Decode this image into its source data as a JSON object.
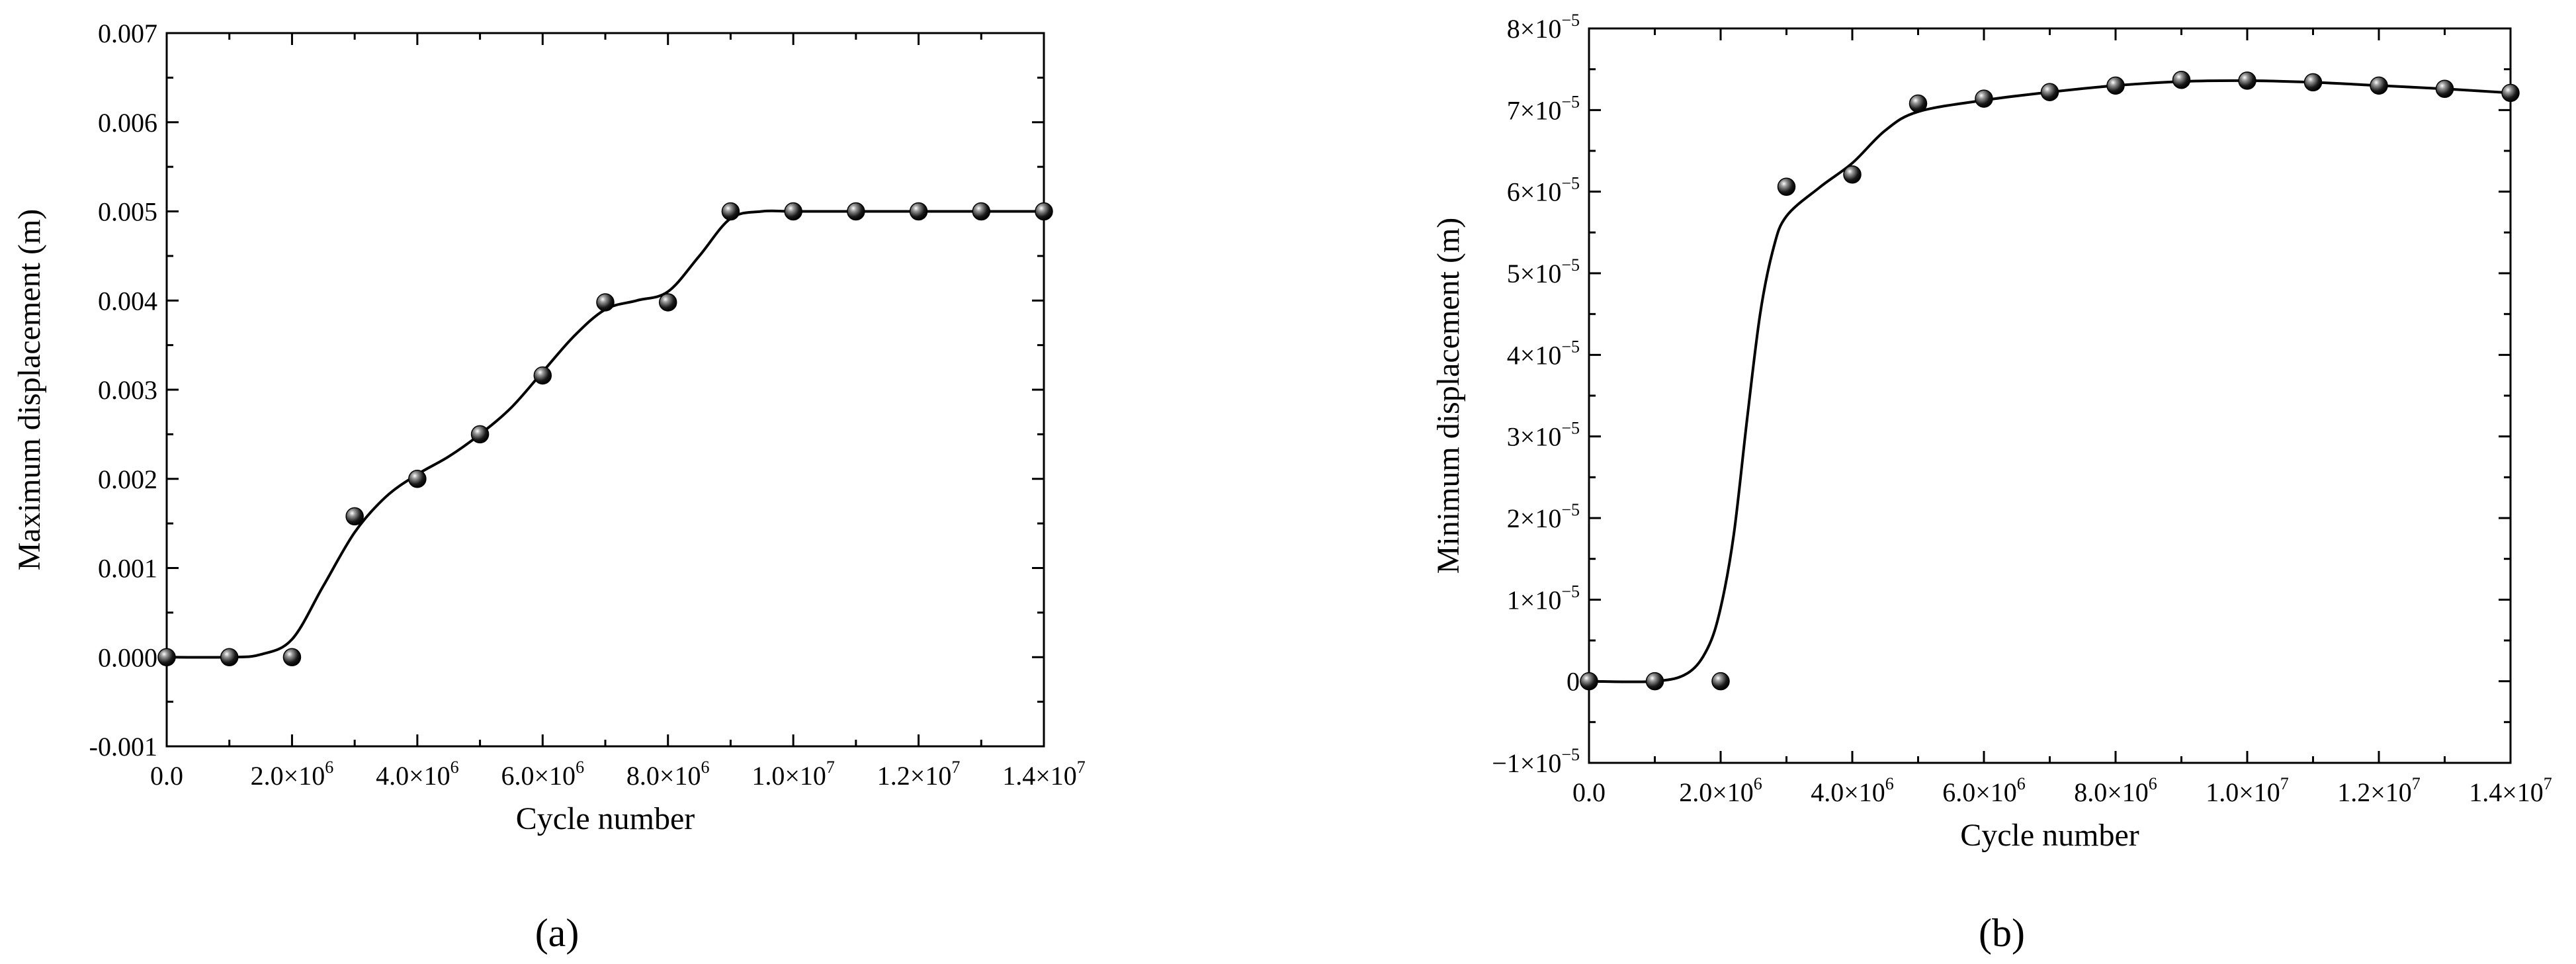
{
  "chart_data": [
    {
      "type": "line",
      "panel_label": "(a)",
      "xlabel": "Cycle number",
      "ylabel": "Maximum displacement (m)",
      "xlim": [
        0,
        14000000
      ],
      "ylim": [
        -0.001,
        0.007
      ],
      "x_ticks": [
        {
          "value": 0,
          "label": "0.0"
        },
        {
          "value": 2000000,
          "label": "2.0×10",
          "exp": "6"
        },
        {
          "value": 4000000,
          "label": "4.0×10",
          "exp": "6"
        },
        {
          "value": 6000000,
          "label": "6.0×10",
          "exp": "6"
        },
        {
          "value": 8000000,
          "label": "8.0×10",
          "exp": "6"
        },
        {
          "value": 10000000,
          "label": "1.0×10",
          "exp": "7"
        },
        {
          "value": 12000000,
          "label": "1.2×10",
          "exp": "7"
        },
        {
          "value": 14000000,
          "label": "1.4×10",
          "exp": "7"
        }
      ],
      "y_ticks": [
        {
          "value": -0.001,
          "label": "-0.001"
        },
        {
          "value": 0.0,
          "label": "0.000"
        },
        {
          "value": 0.001,
          "label": "0.001"
        },
        {
          "value": 0.002,
          "label": "0.002"
        },
        {
          "value": 0.003,
          "label": "0.003"
        },
        {
          "value": 0.004,
          "label": "0.004"
        },
        {
          "value": 0.005,
          "label": "0.005"
        },
        {
          "value": 0.006,
          "label": "0.006"
        },
        {
          "value": 0.007,
          "label": "0.007"
        }
      ],
      "points": {
        "x": [
          0,
          1000000,
          2000000,
          3000000,
          4000000,
          5000000,
          6000000,
          7000000,
          8000000,
          9000000,
          10000000,
          11000000,
          12000000,
          13000000,
          14000000
        ],
        "y": [
          0,
          0,
          0,
          0.00158,
          0.002,
          0.0025,
          0.00316,
          0.00398,
          0.00398,
          0.005,
          0.005,
          0.005,
          0.005,
          0.005,
          0.005
        ]
      },
      "curve": {
        "x": [
          0,
          1000000,
          1500000,
          2000000,
          2500000,
          3000000,
          3500000,
          4000000,
          4500000,
          5000000,
          5500000,
          6000000,
          6500000,
          7000000,
          7500000,
          8000000,
          8500000,
          9000000,
          9500000,
          10000000,
          11000000,
          12000000,
          13000000,
          14000000
        ],
        "y": [
          0,
          0,
          3e-05,
          0.0002,
          0.0008,
          0.0014,
          0.0018,
          0.00205,
          0.00225,
          0.0025,
          0.0028,
          0.0032,
          0.0036,
          0.0039,
          0.004,
          0.0041,
          0.0045,
          0.00492,
          0.005,
          0.005,
          0.005,
          0.005,
          0.005,
          0.005
        ]
      }
    },
    {
      "type": "line",
      "panel_label": "(b)",
      "xlabel": "Cycle number",
      "ylabel": "Minimum displacement (m)",
      "xlim": [
        0,
        14000000
      ],
      "ylim": [
        -1e-05,
        8e-05
      ],
      "x_ticks": [
        {
          "value": 0,
          "label": "0.0"
        },
        {
          "value": 2000000,
          "label": "2.0×10",
          "exp": "6"
        },
        {
          "value": 4000000,
          "label": "4.0×10",
          "exp": "6"
        },
        {
          "value": 6000000,
          "label": "6.0×10",
          "exp": "6"
        },
        {
          "value": 8000000,
          "label": "8.0×10",
          "exp": "6"
        },
        {
          "value": 10000000,
          "label": "1.0×10",
          "exp": "7"
        },
        {
          "value": 12000000,
          "label": "1.2×10",
          "exp": "7"
        },
        {
          "value": 14000000,
          "label": "1.4×10",
          "exp": "7"
        }
      ],
      "y_ticks": [
        {
          "value": -1e-05,
          "label": "−1×10",
          "exp": "−5"
        },
        {
          "value": 0,
          "label": "0"
        },
        {
          "value": 1e-05,
          "label": "1×10",
          "exp": "−5"
        },
        {
          "value": 2e-05,
          "label": "2×10",
          "exp": "−5"
        },
        {
          "value": 3e-05,
          "label": "3×10",
          "exp": "−5"
        },
        {
          "value": 4e-05,
          "label": "4×10",
          "exp": "−5"
        },
        {
          "value": 5e-05,
          "label": "5×10",
          "exp": "−5"
        },
        {
          "value": 6e-05,
          "label": "6×10",
          "exp": "−5"
        },
        {
          "value": 7e-05,
          "label": "7×10",
          "exp": "−5"
        },
        {
          "value": 8e-05,
          "label": "8×10",
          "exp": "−5"
        }
      ],
      "points": {
        "x": [
          0,
          1000000,
          2000000,
          3000000,
          4000000,
          5000000,
          6000000,
          7000000,
          8000000,
          9000000,
          10000000,
          11000000,
          12000000,
          13000000,
          14000000
        ],
        "y": [
          0,
          0,
          0,
          6.06e-05,
          6.21e-05,
          7.08e-05,
          7.14e-05,
          7.22e-05,
          7.3e-05,
          7.37e-05,
          7.36e-05,
          7.34e-05,
          7.3e-05,
          7.26e-05,
          7.21e-05
        ]
      },
      "curve": {
        "x": [
          0,
          1000000,
          1500000,
          1800000,
          2000000,
          2200000,
          2400000,
          2600000,
          2800000,
          3000000,
          3500000,
          4000000,
          4500000,
          5000000,
          6000000,
          7000000,
          8000000,
          9000000,
          10000000,
          11000000,
          12000000,
          13000000,
          14000000
        ],
        "y": [
          0,
          0,
          1e-06,
          4e-06,
          9e-06,
          1.8e-05,
          3.2e-05,
          4.5e-05,
          5.3e-05,
          5.7e-05,
          6.05e-05,
          6.35e-05,
          6.75e-05,
          6.98e-05,
          7.12e-05,
          7.22e-05,
          7.3e-05,
          7.35e-05,
          7.36e-05,
          7.34e-05,
          7.3e-05,
          7.26e-05,
          7.21e-05
        ]
      }
    }
  ]
}
